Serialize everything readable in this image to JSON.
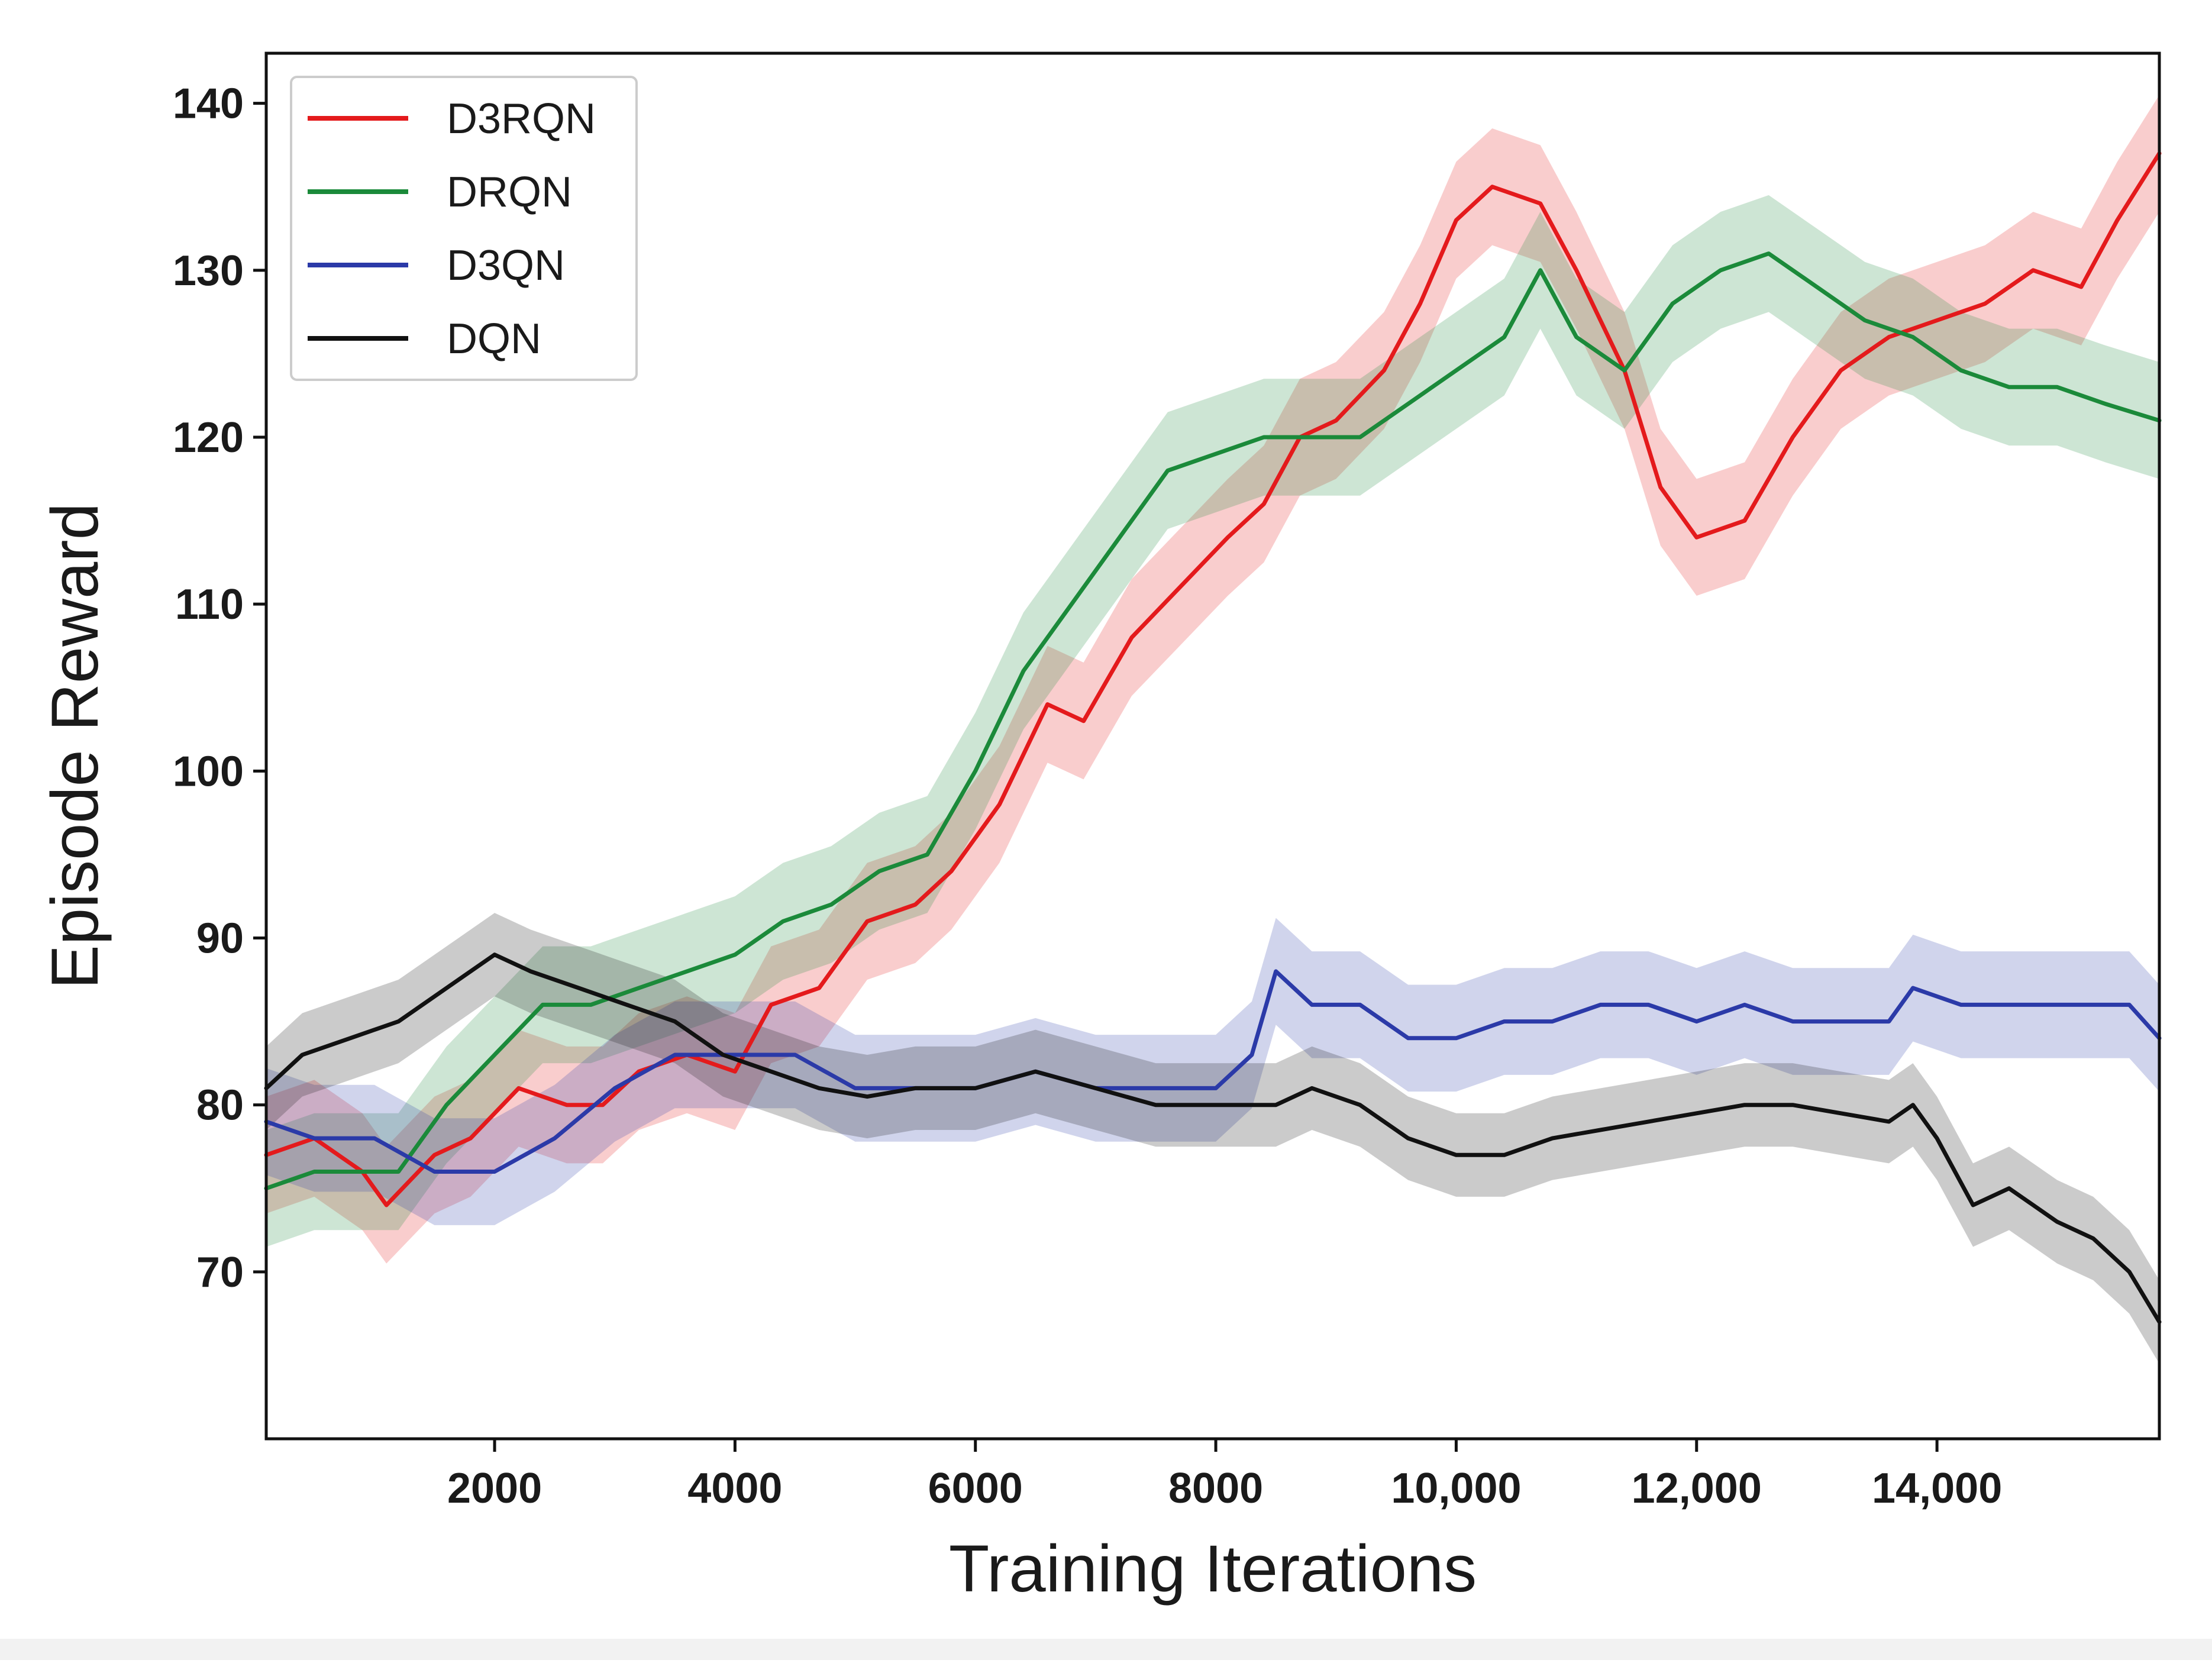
{
  "chart_data": {
    "type": "line",
    "title": "",
    "xlabel": "Training Iterations",
    "ylabel": "Episode Reward",
    "xlim": [
      100,
      15850
    ],
    "ylim": [
      60,
      143
    ],
    "xticks": [
      2000,
      4000,
      6000,
      8000,
      10000,
      12000,
      14000
    ],
    "xtick_labels": [
      "2000",
      "4000",
      "6000",
      "8000",
      "10,000",
      "12,000",
      "14,000"
    ],
    "yticks": [
      70,
      80,
      90,
      100,
      110,
      120,
      130,
      140
    ],
    "ytick_labels": [
      "70",
      "80",
      "90",
      "100",
      "110",
      "120",
      "130",
      "140"
    ],
    "legend_position": "top-left",
    "series": [
      {
        "name": "D3RQN",
        "color": "#e41a1c",
        "band_halfwidth": 3.5,
        "x": [
          100,
          500,
          900,
          1100,
          1500,
          1800,
          2200,
          2600,
          2900,
          3200,
          3600,
          4000,
          4300,
          4700,
          5100,
          5500,
          5800,
          6200,
          6600,
          6900,
          7300,
          7700,
          8100,
          8400,
          8700,
          9000,
          9400,
          9700,
          10000,
          10300,
          10700,
          11000,
          11400,
          11700,
          12000,
          12400,
          12800,
          13200,
          13600,
          14000,
          14400,
          14800,
          15200,
          15500,
          15850
        ],
        "y": [
          77,
          78,
          76,
          74,
          77,
          78,
          81,
          80,
          80,
          82,
          83,
          82,
          86,
          87,
          91,
          92,
          94,
          98,
          104,
          103,
          108,
          111,
          114,
          116,
          120,
          121,
          124,
          128,
          133,
          135,
          134,
          130,
          124,
          117,
          114,
          115,
          120,
          124,
          126,
          127,
          128,
          130,
          129,
          133,
          137
        ]
      },
      {
        "name": "DRQN",
        "color": "#1b8a3a",
        "band_halfwidth": 3.5,
        "x": [
          100,
          500,
          900,
          1200,
          1600,
          2000,
          2400,
          2800,
          3200,
          3600,
          4000,
          4400,
          4800,
          5200,
          5600,
          6000,
          6400,
          6800,
          7200,
          7600,
          8000,
          8400,
          8800,
          9200,
          9600,
          10000,
          10400,
          10700,
          11000,
          11400,
          11800,
          12200,
          12600,
          13000,
          13400,
          13800,
          14200,
          14600,
          15000,
          15400,
          15850
        ],
        "y": [
          75,
          76,
          76,
          76,
          80,
          83,
          86,
          86,
          87,
          88,
          89,
          91,
          92,
          94,
          95,
          100,
          106,
          110,
          114,
          118,
          119,
          120,
          120,
          120,
          122,
          124,
          126,
          130,
          126,
          124,
          128,
          130,
          131,
          129,
          127,
          126,
          124,
          123,
          123,
          122,
          121
        ]
      },
      {
        "name": "D3QN",
        "color": "#2b3aa8",
        "band_halfwidth": 3.2,
        "x": [
          100,
          500,
          1000,
          1500,
          2000,
          2500,
          3000,
          3500,
          4000,
          4500,
          5000,
          5500,
          6000,
          6500,
          7000,
          7500,
          8000,
          8300,
          8500,
          8800,
          9200,
          9600,
          10000,
          10400,
          10800,
          11200,
          11600,
          12000,
          12400,
          12800,
          13200,
          13600,
          13800,
          14200,
          14600,
          15000,
          15400,
          15600,
          15850
        ],
        "y": [
          79,
          78,
          78,
          76,
          76,
          78,
          81,
          83,
          83,
          83,
          81,
          81,
          81,
          82,
          81,
          81,
          81,
          83,
          88,
          86,
          86,
          84,
          84,
          85,
          85,
          86,
          86,
          85,
          86,
          85,
          85,
          85,
          87,
          86,
          86,
          86,
          86,
          86,
          84
        ]
      },
      {
        "name": "DQN",
        "color": "#111111",
        "band_halfwidth": 2.5,
        "x": [
          100,
          400,
          800,
          1200,
          1600,
          2000,
          2300,
          2700,
          3100,
          3500,
          3900,
          4300,
          4700,
          5100,
          5500,
          6000,
          6500,
          7000,
          7500,
          8000,
          8500,
          8800,
          9200,
          9600,
          10000,
          10400,
          10800,
          11200,
          11600,
          12000,
          12400,
          12800,
          13200,
          13600,
          13800,
          14000,
          14300,
          14600,
          15000,
          15300,
          15600,
          15850
        ],
        "y": [
          81,
          83,
          84,
          85,
          87,
          89,
          88,
          87,
          86,
          85,
          83,
          82,
          81,
          80.5,
          81,
          81,
          82,
          81,
          80,
          80,
          80,
          81,
          80,
          78,
          77,
          77,
          78,
          78.5,
          79,
          79.5,
          80,
          80,
          79.5,
          79,
          80,
          78,
          74,
          75,
          73,
          72,
          70,
          67
        ]
      }
    ]
  }
}
